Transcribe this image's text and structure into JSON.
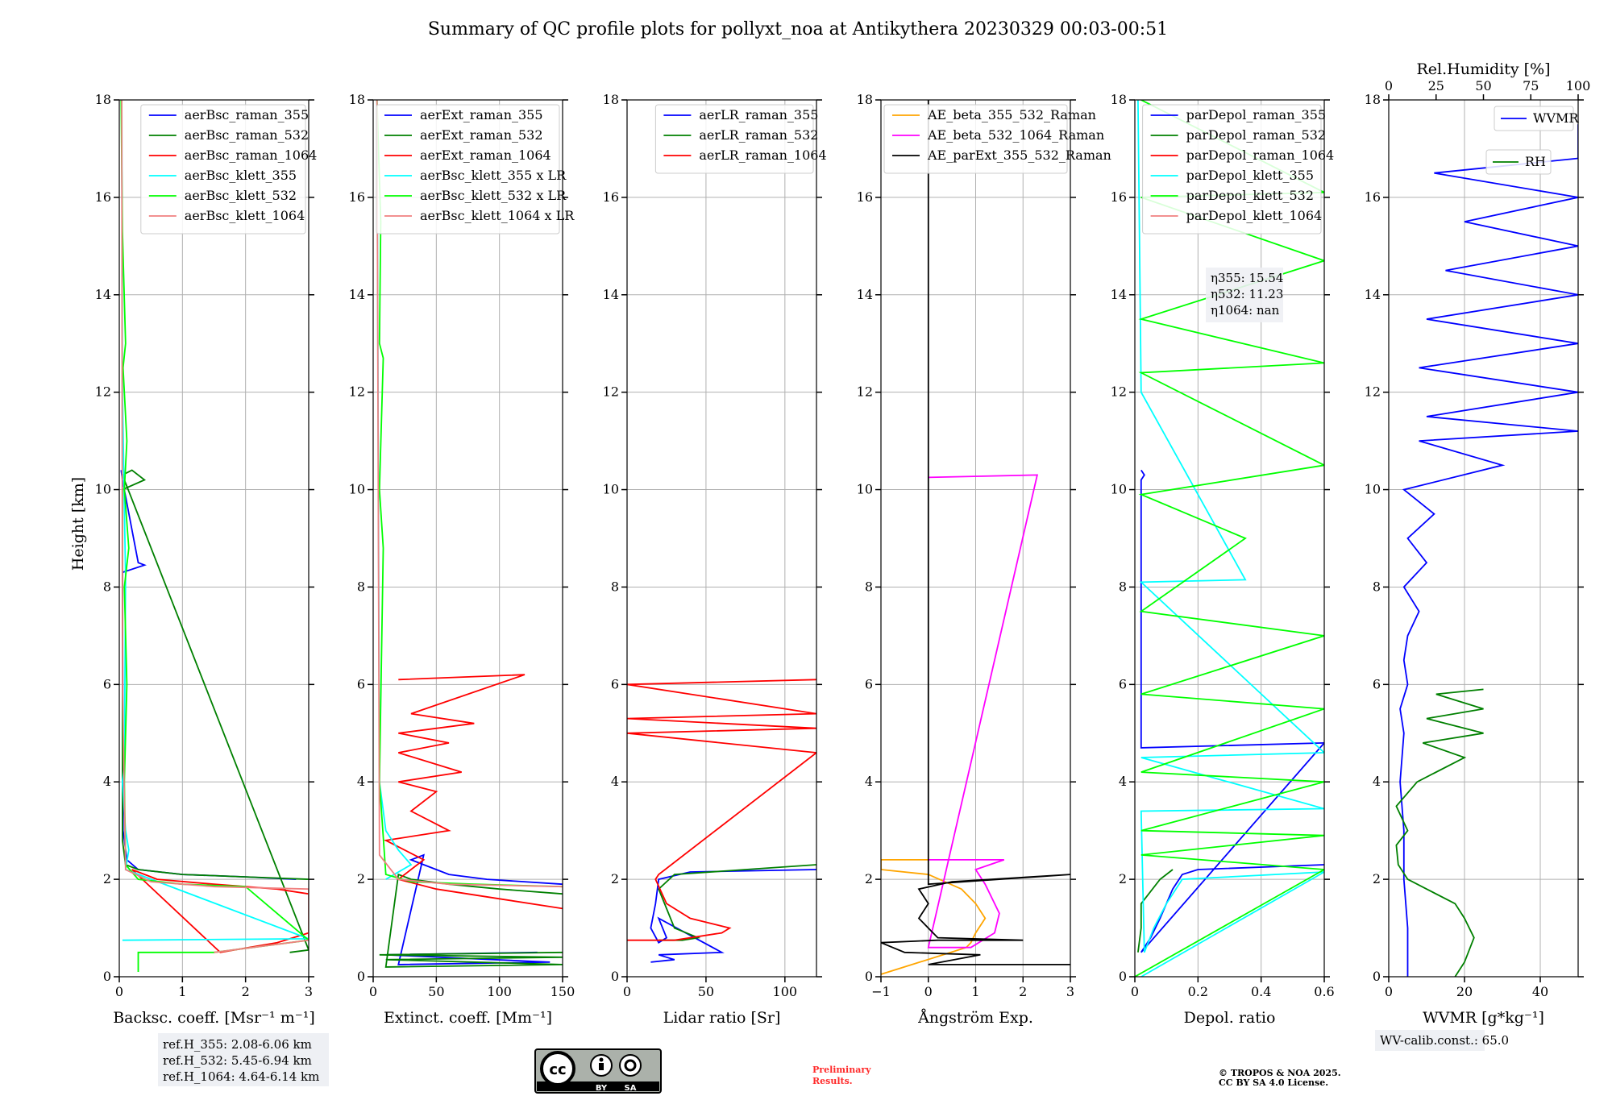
{
  "title": "Summary of QC profile plots for pollyxt_noa at Antikythera 20230329 00:03-00:51",
  "ylabel": "Height [km]",
  "ref_heights": [
    "ref.H_355: 2.08-6.06 km",
    "ref.H_532: 5.45-6.94 km",
    "ref.H_1064: 4.64-6.14 km"
  ],
  "eta": [
    "η355: 15.54",
    "η532: 11.23",
    "η1064: nan"
  ],
  "wv_calib": "WV-calib.const.: 65.0",
  "preliminary": [
    "Preliminary",
    "Results."
  ],
  "copyright": [
    "© TROPOS & NOA 2025.",
    "CC BY SA 4.0 License."
  ],
  "license_badge": {
    "by": "BY",
    "sa": "SA"
  },
  "colors": {
    "blue": "#0000ff",
    "green": "#008000",
    "red": "#ff0000",
    "cyan": "#00ffff",
    "lime": "#00ff00",
    "salmon": "#f08080",
    "orange": "#ffa500",
    "magenta": "#ff00ff",
    "black": "#000000"
  },
  "chart_data": [
    {
      "type": "line",
      "xlabel": "Backsc. coeff. [Msr⁻¹ m⁻¹]",
      "ylabel": "Height [km]",
      "xlim": [
        0,
        3
      ],
      "ylim": [
        0,
        18
      ],
      "xticks": [
        0,
        1,
        2,
        3
      ],
      "yticks": [
        0,
        2,
        4,
        6,
        8,
        10,
        12,
        14,
        16,
        18
      ],
      "grid": true,
      "legend": "top-right",
      "series": [
        {
          "name": "aerBsc_raman_355",
          "color": "#0000ff",
          "x": [
            2.8,
            2.0,
            1.0,
            0.3,
            0.12,
            0.06,
            0.05,
            0.4,
            0.3,
            0.05,
            0.04,
            0.03
          ],
          "y": [
            2.0,
            2.05,
            2.1,
            2.2,
            2.4,
            3.0,
            8.3,
            8.45,
            8.5,
            10.2,
            10.3,
            10.4
          ]
        },
        {
          "name": "aerBsc_raman_532",
          "color": "#008000",
          "x": [
            3.0,
            2.0,
            1.0,
            0.3,
            0.1,
            0.05,
            0.05,
            0.4,
            0.2,
            0.05,
            3.0,
            2.7
          ],
          "y": [
            2.0,
            2.05,
            2.1,
            2.2,
            2.3,
            2.8,
            10.0,
            10.2,
            10.4,
            10.3,
            0.55,
            0.5
          ]
        },
        {
          "name": "aerBsc_raman_1064",
          "color": "#ff0000",
          "x": [
            3.0,
            2.5,
            1.5,
            0.6,
            0.2,
            1.6,
            2.5,
            3.0
          ],
          "y": [
            1.7,
            1.8,
            1.9,
            2.0,
            2.2,
            0.5,
            0.7,
            0.9
          ]
        },
        {
          "name": "aerBsc_klett_355",
          "color": "#00ffff",
          "x": [
            0.05,
            3.0,
            0.1,
            0.15,
            0.1,
            0.05,
            0.08,
            0.1,
            0.05,
            0.04
          ],
          "y": [
            0.75,
            0.78,
            2.2,
            2.6,
            3.0,
            4.0,
            4.3,
            8.2,
            12.0,
            17.9
          ]
        },
        {
          "name": "aerBsc_klett_532",
          "color": "#00ff00",
          "x": [
            0.3,
            0.3,
            1.5,
            3.0,
            2.0,
            1.0,
            0.3,
            0.1,
            0.08,
            0.12,
            0.08,
            0.15,
            0.08,
            0.12,
            0.06,
            0.1,
            0.05,
            0.03
          ],
          "y": [
            0.1,
            0.5,
            0.5,
            0.75,
            1.85,
            1.9,
            2.0,
            2.3,
            4.0,
            6.0,
            8.0,
            8.8,
            10.0,
            11.0,
            12.5,
            13.0,
            15.3,
            18.0
          ]
        },
        {
          "name": "aerBsc_klett_1064",
          "color": "#f08080",
          "x": [
            1.5,
            3.0,
            3.0,
            1.5,
            0.5,
            0.1,
            0.05,
            0.04
          ],
          "y": [
            0.5,
            0.75,
            1.8,
            1.85,
            1.95,
            2.2,
            6.0,
            18.0
          ]
        }
      ]
    },
    {
      "type": "line",
      "xlabel": "Extinct. coeff. [Mm⁻¹]",
      "xlim": [
        0,
        150
      ],
      "ylim": [
        0,
        18
      ],
      "xticks": [
        0,
        50,
        100,
        150
      ],
      "yticks": [
        0,
        2,
        4,
        6,
        8,
        10,
        12,
        14,
        16,
        18
      ],
      "grid": true,
      "legend": "top-right",
      "series": [
        {
          "name": "aerExt_raman_355",
          "color": "#0000ff",
          "x": [
            150,
            90,
            60,
            50,
            40,
            30,
            40,
            20,
            140,
            10,
            130
          ],
          "y": [
            1.9,
            2.0,
            2.1,
            2.2,
            2.3,
            2.4,
            2.5,
            0.25,
            0.3,
            0.45,
            0.5
          ]
        },
        {
          "name": "aerExt_raman_532",
          "color": "#008000",
          "x": [
            150,
            100,
            60,
            30,
            20,
            10,
            150,
            10,
            150,
            5,
            150
          ],
          "y": [
            1.7,
            1.8,
            1.9,
            2.0,
            2.1,
            0.2,
            0.25,
            0.35,
            0.4,
            0.45,
            0.5
          ]
        },
        {
          "name": "aerExt_raman_1064",
          "color": "#ff0000",
          "x": [
            150,
            100,
            50,
            20,
            40,
            10,
            60,
            30,
            50,
            20,
            70,
            20,
            60,
            20,
            80,
            30,
            120,
            20
          ],
          "y": [
            1.4,
            1.6,
            1.8,
            2.0,
            2.4,
            2.8,
            3.0,
            3.4,
            3.8,
            4.0,
            4.2,
            4.6,
            4.8,
            5.0,
            5.2,
            5.4,
            6.2,
            6.1
          ]
        },
        {
          "name": "aerBsc_klett_355 x LR",
          "color": "#00ffff",
          "x": [
            10,
            30,
            20,
            10,
            5,
            3
          ],
          "y": [
            2.0,
            2.3,
            2.6,
            3.0,
            4.0,
            18.0
          ]
        },
        {
          "name": "aerBsc_klett_532 x LR",
          "color": "#00ff00",
          "x": [
            150,
            80,
            30,
            10,
            5,
            8,
            5,
            8,
            5,
            6,
            3
          ],
          "y": [
            1.85,
            1.9,
            1.95,
            2.1,
            4.0,
            8.8,
            10.0,
            12.7,
            13.0,
            15.5,
            18.0
          ]
        },
        {
          "name": "aerBsc_klett_1064 x LR",
          "color": "#f08080",
          "x": [
            150,
            60,
            20,
            5,
            3
          ],
          "y": [
            1.85,
            1.9,
            2.0,
            2.5,
            18.0
          ]
        }
      ]
    },
    {
      "type": "line",
      "xlabel": "Lidar ratio [Sr]",
      "xlim": [
        0,
        120
      ],
      "ylim": [
        0,
        18
      ],
      "xticks": [
        0,
        50,
        100
      ],
      "yticks": [
        0,
        2,
        4,
        6,
        8,
        10,
        12,
        14,
        16,
        18
      ],
      "grid": true,
      "legend": "top-right",
      "series": [
        {
          "name": "aerLR_raman_355",
          "color": "#0000ff",
          "x": [
            120,
            40,
            20,
            18,
            15,
            20,
            25,
            20,
            60,
            20,
            30,
            15
          ],
          "y": [
            2.2,
            2.15,
            2.0,
            1.5,
            1.0,
            0.7,
            0.8,
            1.2,
            0.5,
            0.45,
            0.35,
            0.3
          ]
        },
        {
          "name": "aerLR_raman_532",
          "color": "#008000",
          "x": [
            120,
            30,
            20,
            25,
            30,
            45,
            35,
            20
          ],
          "y": [
            2.3,
            2.1,
            1.8,
            1.4,
            1.0,
            0.8,
            0.75,
            0.75
          ]
        },
        {
          "name": "aerLR_raman_1064",
          "color": "#ff0000",
          "x": [
            120,
            0,
            120,
            0,
            120,
            0,
            120,
            20,
            18,
            25,
            40,
            65,
            60,
            30,
            0
          ],
          "y": [
            6.1,
            6.0,
            5.4,
            5.3,
            5.1,
            5.0,
            4.6,
            2.1,
            2.0,
            1.5,
            1.2,
            1.0,
            0.9,
            0.75,
            0.75
          ]
        }
      ]
    },
    {
      "type": "line",
      "xlabel": "Ångström Exp.",
      "xlim": [
        -1,
        3
      ],
      "ylim": [
        0,
        18
      ],
      "xticks": [
        -1,
        0,
        1,
        2,
        3
      ],
      "yticks": [
        0,
        2,
        4,
        6,
        8,
        10,
        12,
        14,
        16,
        18
      ],
      "grid": true,
      "legend": "top-right",
      "series": [
        {
          "name": "AE_beta_355_532_Raman",
          "color": "#ffa500",
          "x": [
            0.0,
            -1.0,
            -1.0,
            0.0,
            0.7,
            1.0,
            1.2,
            1.0,
            0.9,
            0.8,
            -1.0
          ],
          "y": [
            2.4,
            2.4,
            2.2,
            2.1,
            1.8,
            1.5,
            1.2,
            0.9,
            0.7,
            0.6,
            0.05
          ]
        },
        {
          "name": "AE_beta_532_1064_Raman",
          "color": "#ff00ff",
          "x": [
            0.0,
            1.6,
            1.0,
            1.2,
            1.5,
            1.4,
            0.9,
            0.0,
            2.3,
            0.0
          ],
          "y": [
            2.4,
            2.4,
            2.2,
            1.9,
            1.3,
            0.9,
            0.6,
            0.6,
            10.3,
            10.25
          ]
        },
        {
          "name": "AE_parExt_355_532_Raman",
          "color": "#000000",
          "x": [
            0.0,
            0.0,
            3.0,
            0.5,
            -0.2,
            0.0,
            -0.2,
            0.0,
            0.2,
            2.0,
            0.2,
            -1.0,
            -0.5,
            1.1,
            0.0,
            3.0
          ],
          "y": [
            18.0,
            1.9,
            2.1,
            1.95,
            1.8,
            1.5,
            1.2,
            1.0,
            0.8,
            0.75,
            0.75,
            0.7,
            0.5,
            0.45,
            0.25,
            0.25
          ]
        }
      ]
    },
    {
      "type": "line",
      "xlabel": "Depol. ratio",
      "xlim": [
        0,
        0.6
      ],
      "ylim": [
        0,
        18
      ],
      "xticks": [
        0.0,
        0.2,
        0.4,
        0.6
      ],
      "yticks": [
        0,
        2,
        4,
        6,
        8,
        10,
        12,
        14,
        16,
        18
      ],
      "grid": true,
      "legend": "top-right",
      "series": [
        {
          "name": "parDepol_raman_355",
          "color": "#0000ff",
          "x": [
            0.6,
            0.2,
            0.15,
            0.12,
            0.08,
            0.05,
            0.02,
            0.6,
            0.02,
            0.02,
            0.03,
            0.02
          ],
          "y": [
            2.3,
            2.2,
            2.1,
            1.8,
            1.2,
            0.8,
            0.5,
            4.8,
            4.7,
            10.2,
            10.3,
            10.4
          ]
        },
        {
          "name": "parDepol_raman_532",
          "color": "#008000",
          "x": [
            0.12,
            0.08,
            0.02,
            0.02,
            0.01
          ],
          "y": [
            2.2,
            2.0,
            1.5,
            1.0,
            0.5
          ]
        },
        {
          "name": "parDepol_raman_1064",
          "color": "#ff0000",
          "x": [],
          "y": []
        },
        {
          "name": "parDepol_klett_355",
          "color": "#00ffff",
          "x": [
            0.02,
            0.6,
            0.15,
            0.1,
            0.06,
            0.03,
            0.02,
            0.6,
            0.02,
            0.6,
            0.02,
            0.35,
            0.02,
            0.01
          ],
          "y": [
            0.0,
            2.15,
            2.0,
            1.5,
            1.0,
            0.5,
            3.4,
            3.45,
            4.5,
            4.6,
            8.1,
            8.15,
            12.0,
            18.0
          ]
        },
        {
          "name": "parDepol_klett_532",
          "color": "#00ff00",
          "x": [
            0.0,
            0.6,
            0.02,
            0.6,
            0.02,
            0.6,
            0.02,
            0.6,
            0.02,
            0.6,
            0.02,
            0.35,
            0.02,
            0.6,
            0.02,
            0.6,
            0.02,
            0.6,
            0.02,
            0.6,
            0.02
          ],
          "y": [
            0.0,
            2.2,
            2.5,
            2.9,
            3.0,
            4.0,
            4.2,
            5.5,
            5.8,
            7.0,
            7.5,
            9.0,
            9.9,
            10.5,
            12.4,
            12.6,
            13.5,
            14.7,
            16.0,
            16.1,
            18.0
          ]
        },
        {
          "name": "parDepol_klett_1064",
          "color": "#f08080",
          "x": [],
          "y": []
        }
      ]
    },
    {
      "type": "line",
      "xlabel": "WVMR [g*kg⁻¹]",
      "x2label": "Rel.Humidity [%]",
      "xlim": [
        0,
        50
      ],
      "x2lim": [
        0,
        100
      ],
      "ylim": [
        0,
        18
      ],
      "xticks": [
        0,
        20,
        40
      ],
      "x2ticks": [
        0,
        25,
        50,
        75,
        100
      ],
      "yticks": [
        0,
        2,
        4,
        6,
        8,
        10,
        12,
        14,
        16,
        18
      ],
      "grid": true,
      "legend": "top-right",
      "series": [
        {
          "name": "WVMR",
          "color": "#0000ff",
          "x": [
            5,
            5,
            4,
            4,
            3,
            4,
            3,
            5,
            4,
            5,
            8,
            4,
            10,
            5,
            12,
            4,
            30,
            8,
            50,
            10,
            50,
            8,
            50,
            10,
            50,
            15,
            50,
            20,
            50,
            12,
            50,
            50,
            50
          ],
          "y": [
            0.0,
            1.0,
            2.0,
            3.0,
            4.0,
            5.0,
            5.5,
            6.0,
            6.5,
            7.0,
            7.5,
            8.0,
            8.5,
            9.0,
            9.5,
            10.0,
            10.5,
            11.0,
            11.2,
            11.5,
            12.0,
            12.5,
            13.0,
            13.5,
            14.0,
            14.5,
            15.0,
            15.5,
            16.0,
            16.5,
            16.8,
            17.3,
            17.5
          ]
        },
        {
          "name": "RH",
          "color": "#008000",
          "x": [
            35,
            40,
            45,
            40,
            35,
            20,
            10,
            5,
            4,
            10,
            4,
            15,
            40,
            18,
            50,
            20,
            50,
            25,
            50
          ],
          "y": [
            0.0,
            0.3,
            0.8,
            1.2,
            1.5,
            1.8,
            2.0,
            2.3,
            2.7,
            3.0,
            3.5,
            4.0,
            4.5,
            4.8,
            5.0,
            5.3,
            5.5,
            5.8,
            5.9
          ]
        }
      ]
    }
  ]
}
